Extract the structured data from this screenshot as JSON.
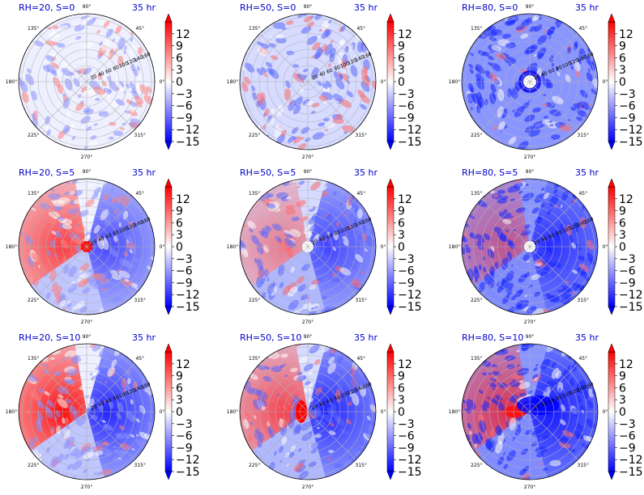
{
  "chart_data": {
    "type": "polar-heatmap",
    "colormap": "bwr",
    "colors": {
      "negative": "#0000ff",
      "zero": "#ffffff",
      "positive": "#ff0000"
    },
    "color_range": [
      -15,
      15
    ],
    "colorbar_ticks": [
      "12",
      "9",
      "6",
      "3",
      "0",
      "−3",
      "−6",
      "−9",
      "−12",
      "−15"
    ],
    "colorbar_extend": "both",
    "angle_ticks": [
      "90°",
      "45°",
      "0°",
      "315°",
      "270°",
      "225°",
      "180°",
      "135°"
    ],
    "radial_ticks": [
      "20",
      "40",
      "60",
      "80",
      "100",
      "120",
      "140",
      "160"
    ],
    "grid": true,
    "panels": [
      {
        "title": "RH=20, S=0",
        "time": "35 hr",
        "rh": 20,
        "shear": 0
      },
      {
        "title": "RH=50, S=0",
        "time": "35 hr",
        "rh": 50,
        "shear": 0
      },
      {
        "title": "RH=80, S=0",
        "time": "35 hr",
        "rh": 80,
        "shear": 0
      },
      {
        "title": "RH=20, S=5",
        "time": "35 hr",
        "rh": 20,
        "shear": 5
      },
      {
        "title": "RH=50, S=5",
        "time": "35 hr",
        "rh": 50,
        "shear": 5
      },
      {
        "title": "RH=80, S=5",
        "time": "35 hr",
        "rh": 80,
        "shear": 5
      },
      {
        "title": "RH=20, S=10",
        "time": "35 hr",
        "rh": 20,
        "shear": 10
      },
      {
        "title": "RH=50, S=10",
        "time": "35 hr",
        "rh": 50,
        "shear": 10
      },
      {
        "title": "RH=80, S=10",
        "time": "35 hr",
        "rh": 80,
        "shear": 10
      }
    ]
  }
}
